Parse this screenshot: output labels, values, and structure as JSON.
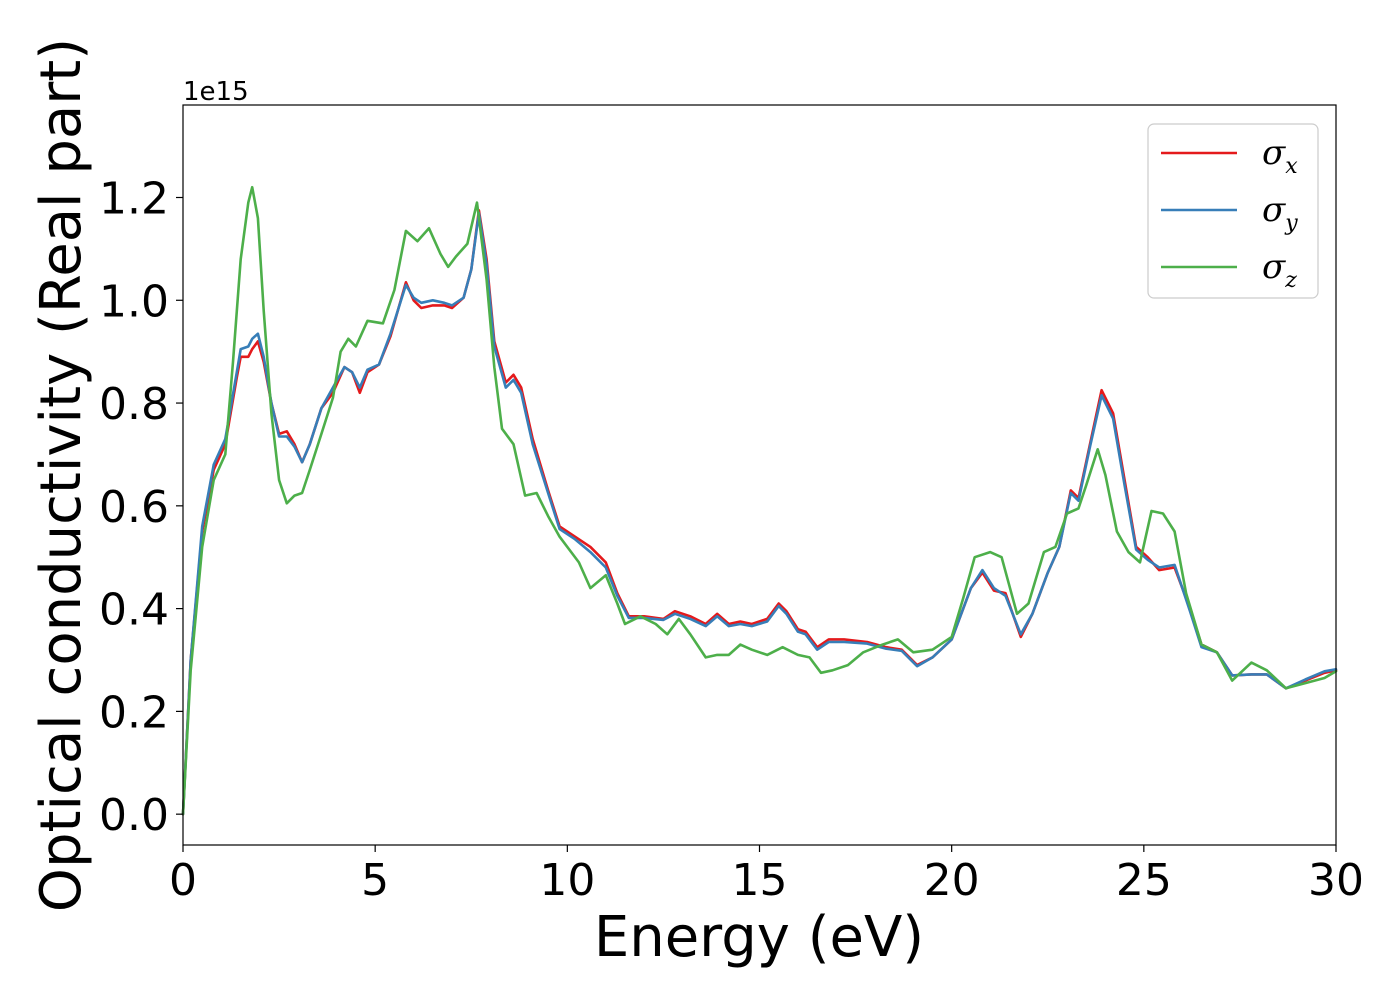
{
  "chart_data": {
    "type": "line",
    "title": "",
    "xlabel": "Energy (eV)",
    "ylabel": "Optical conductivity (Real part)",
    "y_offset_label": "1e15",
    "xlim": [
      0,
      30
    ],
    "ylim": [
      -0.06,
      1.38
    ],
    "x_ticks": [
      0,
      5,
      10,
      15,
      20,
      25,
      30
    ],
    "x_tick_labels": [
      "0",
      "5",
      "10",
      "15",
      "20",
      "25",
      "30"
    ],
    "y_ticks": [
      0.0,
      0.2,
      0.4,
      0.6,
      0.8,
      1.0,
      1.2
    ],
    "y_tick_labels": [
      "0.0",
      "0.2",
      "0.4",
      "0.6",
      "0.8",
      "1.0",
      "1.2"
    ],
    "grid": false,
    "legend_position": "top-right",
    "series": [
      {
        "name": "σx",
        "legend_symbol": "σ",
        "legend_sub": "x",
        "color": "#e41a1c",
        "points": [
          [
            0,
            0.0
          ],
          [
            0.2,
            0.3
          ],
          [
            0.5,
            0.55
          ],
          [
            0.8,
            0.67
          ],
          [
            1.1,
            0.72
          ],
          [
            1.4,
            0.85
          ],
          [
            1.5,
            0.89
          ],
          [
            1.7,
            0.89
          ],
          [
            1.8,
            0.905
          ],
          [
            1.95,
            0.92
          ],
          [
            2.1,
            0.88
          ],
          [
            2.3,
            0.8
          ],
          [
            2.5,
            0.74
          ],
          [
            2.7,
            0.745
          ],
          [
            2.9,
            0.72
          ],
          [
            3.1,
            0.685
          ],
          [
            3.3,
            0.72
          ],
          [
            3.6,
            0.79
          ],
          [
            3.9,
            0.82
          ],
          [
            4.2,
            0.87
          ],
          [
            4.4,
            0.86
          ],
          [
            4.6,
            0.82
          ],
          [
            4.8,
            0.86
          ],
          [
            5.1,
            0.875
          ],
          [
            5.4,
            0.93
          ],
          [
            5.8,
            1.035
          ],
          [
            6.0,
            1.0
          ],
          [
            6.2,
            0.985
          ],
          [
            6.5,
            0.99
          ],
          [
            6.8,
            0.99
          ],
          [
            7.0,
            0.985
          ],
          [
            7.3,
            1.005
          ],
          [
            7.5,
            1.06
          ],
          [
            7.7,
            1.175
          ],
          [
            7.9,
            1.08
          ],
          [
            8.1,
            0.92
          ],
          [
            8.4,
            0.84
          ],
          [
            8.6,
            0.855
          ],
          [
            8.8,
            0.83
          ],
          [
            9.1,
            0.73
          ],
          [
            9.5,
            0.63
          ],
          [
            9.8,
            0.56
          ],
          [
            10.2,
            0.54
          ],
          [
            10.6,
            0.52
          ],
          [
            11.0,
            0.49
          ],
          [
            11.3,
            0.43
          ],
          [
            11.6,
            0.385
          ],
          [
            12.0,
            0.385
          ],
          [
            12.5,
            0.38
          ],
          [
            12.8,
            0.395
          ],
          [
            13.2,
            0.385
          ],
          [
            13.6,
            0.37
          ],
          [
            13.9,
            0.39
          ],
          [
            14.2,
            0.37
          ],
          [
            14.5,
            0.375
          ],
          [
            14.8,
            0.37
          ],
          [
            15.2,
            0.38
          ],
          [
            15.5,
            0.41
          ],
          [
            15.7,
            0.395
          ],
          [
            16.0,
            0.36
          ],
          [
            16.2,
            0.355
          ],
          [
            16.5,
            0.325
          ],
          [
            16.8,
            0.34
          ],
          [
            17.2,
            0.34
          ],
          [
            17.8,
            0.335
          ],
          [
            18.3,
            0.325
          ],
          [
            18.7,
            0.32
          ],
          [
            19.1,
            0.29
          ],
          [
            19.5,
            0.305
          ],
          [
            20.0,
            0.34
          ],
          [
            20.5,
            0.44
          ],
          [
            20.8,
            0.47
          ],
          [
            21.1,
            0.435
          ],
          [
            21.4,
            0.43
          ],
          [
            21.8,
            0.345
          ],
          [
            22.1,
            0.39
          ],
          [
            22.5,
            0.47
          ],
          [
            22.8,
            0.52
          ],
          [
            23.1,
            0.63
          ],
          [
            23.3,
            0.615
          ],
          [
            23.6,
            0.72
          ],
          [
            23.9,
            0.825
          ],
          [
            24.2,
            0.78
          ],
          [
            24.5,
            0.65
          ],
          [
            24.8,
            0.52
          ],
          [
            25.1,
            0.5
          ],
          [
            25.4,
            0.475
          ],
          [
            25.8,
            0.48
          ],
          [
            26.2,
            0.4
          ],
          [
            26.5,
            0.33
          ],
          [
            26.9,
            0.315
          ],
          [
            27.3,
            0.27
          ],
          [
            27.8,
            0.272
          ],
          [
            28.2,
            0.272
          ],
          [
            28.7,
            0.245
          ],
          [
            29.2,
            0.26
          ],
          [
            29.7,
            0.275
          ],
          [
            30.0,
            0.28
          ]
        ]
      },
      {
        "name": "σy",
        "legend_symbol": "σ",
        "legend_sub": "y",
        "color": "#377eb8",
        "points": [
          [
            0,
            0.0
          ],
          [
            0.2,
            0.3
          ],
          [
            0.5,
            0.56
          ],
          [
            0.8,
            0.68
          ],
          [
            1.1,
            0.73
          ],
          [
            1.4,
            0.86
          ],
          [
            1.5,
            0.905
          ],
          [
            1.7,
            0.91
          ],
          [
            1.8,
            0.925
          ],
          [
            1.95,
            0.935
          ],
          [
            2.1,
            0.89
          ],
          [
            2.3,
            0.8
          ],
          [
            2.5,
            0.735
          ],
          [
            2.7,
            0.735
          ],
          [
            2.9,
            0.715
          ],
          [
            3.1,
            0.685
          ],
          [
            3.3,
            0.72
          ],
          [
            3.6,
            0.79
          ],
          [
            3.9,
            0.83
          ],
          [
            4.2,
            0.87
          ],
          [
            4.4,
            0.86
          ],
          [
            4.6,
            0.83
          ],
          [
            4.8,
            0.865
          ],
          [
            5.1,
            0.875
          ],
          [
            5.4,
            0.935
          ],
          [
            5.8,
            1.03
          ],
          [
            6.0,
            1.005
          ],
          [
            6.2,
            0.995
          ],
          [
            6.5,
            1.0
          ],
          [
            6.8,
            0.995
          ],
          [
            7.0,
            0.99
          ],
          [
            7.3,
            1.005
          ],
          [
            7.5,
            1.06
          ],
          [
            7.7,
            1.17
          ],
          [
            7.9,
            1.07
          ],
          [
            8.1,
            0.91
          ],
          [
            8.4,
            0.83
          ],
          [
            8.6,
            0.845
          ],
          [
            8.8,
            0.82
          ],
          [
            9.1,
            0.72
          ],
          [
            9.5,
            0.625
          ],
          [
            9.8,
            0.555
          ],
          [
            10.2,
            0.535
          ],
          [
            10.6,
            0.51
          ],
          [
            11.0,
            0.48
          ],
          [
            11.3,
            0.425
          ],
          [
            11.6,
            0.382
          ],
          [
            12.0,
            0.382
          ],
          [
            12.5,
            0.378
          ],
          [
            12.8,
            0.39
          ],
          [
            13.2,
            0.38
          ],
          [
            13.6,
            0.366
          ],
          [
            13.9,
            0.385
          ],
          [
            14.2,
            0.366
          ],
          [
            14.5,
            0.37
          ],
          [
            14.8,
            0.366
          ],
          [
            15.2,
            0.375
          ],
          [
            15.5,
            0.405
          ],
          [
            15.7,
            0.39
          ],
          [
            16.0,
            0.355
          ],
          [
            16.2,
            0.35
          ],
          [
            16.5,
            0.32
          ],
          [
            16.8,
            0.335
          ],
          [
            17.2,
            0.335
          ],
          [
            17.8,
            0.332
          ],
          [
            18.3,
            0.322
          ],
          [
            18.7,
            0.318
          ],
          [
            19.1,
            0.288
          ],
          [
            19.5,
            0.305
          ],
          [
            20.0,
            0.34
          ],
          [
            20.5,
            0.44
          ],
          [
            20.8,
            0.475
          ],
          [
            21.1,
            0.44
          ],
          [
            21.4,
            0.425
          ],
          [
            21.8,
            0.35
          ],
          [
            22.1,
            0.39
          ],
          [
            22.5,
            0.47
          ],
          [
            22.8,
            0.52
          ],
          [
            23.1,
            0.625
          ],
          [
            23.3,
            0.61
          ],
          [
            23.6,
            0.715
          ],
          [
            23.9,
            0.815
          ],
          [
            24.2,
            0.77
          ],
          [
            24.5,
            0.64
          ],
          [
            24.8,
            0.515
          ],
          [
            25.1,
            0.495
          ],
          [
            25.4,
            0.48
          ],
          [
            25.8,
            0.485
          ],
          [
            26.2,
            0.395
          ],
          [
            26.5,
            0.325
          ],
          [
            26.9,
            0.315
          ],
          [
            27.3,
            0.27
          ],
          [
            27.8,
            0.272
          ],
          [
            28.2,
            0.272
          ],
          [
            28.7,
            0.245
          ],
          [
            29.2,
            0.262
          ],
          [
            29.7,
            0.278
          ],
          [
            30.0,
            0.282
          ]
        ]
      },
      {
        "name": "σz",
        "legend_symbol": "σ",
        "legend_sub": "z",
        "color": "#4daf4a",
        "points": [
          [
            0,
            0.0
          ],
          [
            0.2,
            0.28
          ],
          [
            0.5,
            0.52
          ],
          [
            0.8,
            0.65
          ],
          [
            1.1,
            0.7
          ],
          [
            1.3,
            0.88
          ],
          [
            1.5,
            1.08
          ],
          [
            1.7,
            1.19
          ],
          [
            1.8,
            1.22
          ],
          [
            1.95,
            1.16
          ],
          [
            2.1,
            0.98
          ],
          [
            2.3,
            0.78
          ],
          [
            2.5,
            0.65
          ],
          [
            2.7,
            0.605
          ],
          [
            2.9,
            0.62
          ],
          [
            3.1,
            0.625
          ],
          [
            3.3,
            0.67
          ],
          [
            3.6,
            0.74
          ],
          [
            3.9,
            0.81
          ],
          [
            4.1,
            0.9
          ],
          [
            4.3,
            0.925
          ],
          [
            4.5,
            0.91
          ],
          [
            4.8,
            0.96
          ],
          [
            5.2,
            0.955
          ],
          [
            5.5,
            1.02
          ],
          [
            5.8,
            1.135
          ],
          [
            6.1,
            1.115
          ],
          [
            6.4,
            1.14
          ],
          [
            6.7,
            1.09
          ],
          [
            6.9,
            1.065
          ],
          [
            7.1,
            1.085
          ],
          [
            7.4,
            1.11
          ],
          [
            7.65,
            1.19
          ],
          [
            7.9,
            1.04
          ],
          [
            8.1,
            0.87
          ],
          [
            8.3,
            0.75
          ],
          [
            8.6,
            0.72
          ],
          [
            8.9,
            0.62
          ],
          [
            9.2,
            0.625
          ],
          [
            9.5,
            0.58
          ],
          [
            9.8,
            0.54
          ],
          [
            10.1,
            0.51
          ],
          [
            10.3,
            0.49
          ],
          [
            10.6,
            0.44
          ],
          [
            11.0,
            0.465
          ],
          [
            11.3,
            0.41
          ],
          [
            11.5,
            0.37
          ],
          [
            11.9,
            0.385
          ],
          [
            12.3,
            0.37
          ],
          [
            12.6,
            0.35
          ],
          [
            12.9,
            0.38
          ],
          [
            13.2,
            0.35
          ],
          [
            13.6,
            0.305
          ],
          [
            13.9,
            0.31
          ],
          [
            14.2,
            0.31
          ],
          [
            14.5,
            0.33
          ],
          [
            14.8,
            0.32
          ],
          [
            15.2,
            0.31
          ],
          [
            15.6,
            0.325
          ],
          [
            16.0,
            0.31
          ],
          [
            16.3,
            0.305
          ],
          [
            16.6,
            0.275
          ],
          [
            16.9,
            0.28
          ],
          [
            17.3,
            0.29
          ],
          [
            17.7,
            0.315
          ],
          [
            18.2,
            0.33
          ],
          [
            18.6,
            0.34
          ],
          [
            19.0,
            0.315
          ],
          [
            19.5,
            0.32
          ],
          [
            20.0,
            0.345
          ],
          [
            20.3,
            0.42
          ],
          [
            20.6,
            0.5
          ],
          [
            21.0,
            0.51
          ],
          [
            21.3,
            0.5
          ],
          [
            21.7,
            0.39
          ],
          [
            22.0,
            0.41
          ],
          [
            22.4,
            0.51
          ],
          [
            22.7,
            0.52
          ],
          [
            23.0,
            0.585
          ],
          [
            23.3,
            0.595
          ],
          [
            23.5,
            0.64
          ],
          [
            23.8,
            0.71
          ],
          [
            24.0,
            0.66
          ],
          [
            24.3,
            0.55
          ],
          [
            24.6,
            0.51
          ],
          [
            24.9,
            0.49
          ],
          [
            25.2,
            0.59
          ],
          [
            25.5,
            0.585
          ],
          [
            25.8,
            0.55
          ],
          [
            26.1,
            0.43
          ],
          [
            26.5,
            0.33
          ],
          [
            26.9,
            0.315
          ],
          [
            27.3,
            0.26
          ],
          [
            27.8,
            0.295
          ],
          [
            28.2,
            0.28
          ],
          [
            28.7,
            0.245
          ],
          [
            29.2,
            0.255
          ],
          [
            29.7,
            0.265
          ],
          [
            30.0,
            0.278
          ]
        ]
      }
    ]
  }
}
